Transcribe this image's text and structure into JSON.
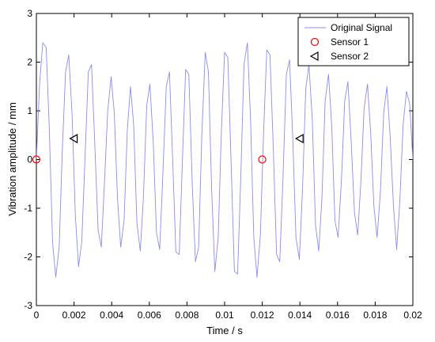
{
  "chart_data": {
    "type": "line",
    "title": "",
    "xlabel": "Time / s",
    "ylabel": "Vibration amplitude / mm",
    "xlim": [
      0,
      0.02
    ],
    "ylim": [
      -3,
      3
    ],
    "x_ticks": [
      0,
      0.002,
      0.004,
      0.006,
      0.008,
      0.01,
      0.012,
      0.014,
      0.016,
      0.018,
      0.02
    ],
    "x_tick_labels": [
      "0",
      "0.002",
      "0.004",
      "0.006",
      "0.008",
      "0.01",
      "0.012",
      "0.014",
      "0.016",
      "0.018",
      "0.02"
    ],
    "y_ticks": [
      -3,
      -2,
      -1,
      0,
      1,
      2,
      3
    ],
    "y_tick_labels": [
      "-3",
      "-2",
      "-1",
      "0",
      "1",
      "2",
      "3"
    ],
    "grid": false,
    "legend_position": "top-right",
    "series": [
      {
        "name": "Original Signal",
        "style": "line",
        "color": "#8c8cf0",
        "x": [
          0,
          0.00017,
          0.00034,
          0.00052,
          0.00069,
          0.00086,
          0.00103,
          0.00121,
          0.00138,
          0.00155,
          0.00172,
          0.0019,
          0.00207,
          0.00224,
          0.00241,
          0.00259,
          0.00276,
          0.00293,
          0.0031,
          0.00328,
          0.00345,
          0.00362,
          0.00379,
          0.00397,
          0.00414,
          0.00431,
          0.00448,
          0.00466,
          0.00483,
          0.005,
          0.00517,
          0.00534,
          0.00552,
          0.00569,
          0.00586,
          0.00603,
          0.00621,
          0.00638,
          0.00655,
          0.00672,
          0.0069,
          0.00707,
          0.00724,
          0.00741,
          0.00759,
          0.00776,
          0.00793,
          0.0081,
          0.00828,
          0.00845,
          0.00862,
          0.00879,
          0.00897,
          0.00914,
          0.00931,
          0.00948,
          0.00966,
          0.00983,
          0.01,
          0.01017,
          0.01034,
          0.01052,
          0.01069,
          0.01086,
          0.01103,
          0.01121,
          0.01138,
          0.01155,
          0.01172,
          0.0119,
          0.01207,
          0.01224,
          0.01241,
          0.01259,
          0.01276,
          0.01293,
          0.0131,
          0.01328,
          0.01345,
          0.01362,
          0.01379,
          0.01397,
          0.01414,
          0.01431,
          0.01448,
          0.01466,
          0.01483,
          0.015,
          0.01517,
          0.01534,
          0.01552,
          0.01569,
          0.01586,
          0.01603,
          0.01621,
          0.01638,
          0.01655,
          0.01672,
          0.0169,
          0.01707,
          0.01724,
          0.01741,
          0.01759,
          0.01776,
          0.01793,
          0.0181,
          0.01828,
          0.01845,
          0.01862,
          0.01879,
          0.01897,
          0.01914,
          0.01931,
          0.01948,
          0.01966,
          0.01983,
          0.02
        ],
        "y": [
          0,
          1.55,
          2.4,
          2.3,
          0.6,
          -1.7,
          -2.42,
          -1.8,
          0.2,
          1.8,
          2.15,
          0.9,
          -1.15,
          -2.2,
          -1.7,
          0.1,
          1.8,
          1.95,
          0.35,
          -1.45,
          -1.8,
          -0.45,
          1.0,
          1.7,
          0.95,
          -0.8,
          -1.8,
          -1.25,
          0.6,
          1.5,
          0.7,
          -1.3,
          -1.88,
          -0.75,
          1.1,
          1.55,
          0.35,
          -1.5,
          -1.85,
          -0.3,
          1.5,
          1.8,
          0.0,
          -1.9,
          -1.95,
          0.0,
          1.85,
          1.75,
          -0.5,
          -2.1,
          -1.8,
          0.5,
          2.2,
          1.8,
          -0.6,
          -2.3,
          -1.6,
          0.6,
          2.2,
          2.1,
          0.0,
          -2.3,
          -2.35,
          -0.35,
          1.95,
          2.4,
          0.8,
          -1.6,
          -2.42,
          -1.55,
          0.55,
          2.25,
          2.15,
          0.2,
          -1.95,
          -2.1,
          -0.4,
          1.75,
          2.05,
          0.45,
          -1.6,
          -2.05,
          -0.6,
          1.45,
          1.95,
          0.8,
          -1.35,
          -1.88,
          -0.8,
          1.2,
          1.75,
          0.7,
          -1.25,
          -1.6,
          -0.4,
          1.2,
          1.6,
          0.4,
          -1.1,
          -1.55,
          -0.45,
          1.05,
          1.55,
          0.55,
          -0.95,
          -1.6,
          -0.65,
          0.95,
          1.5,
          0.5,
          -0.95,
          -1.85,
          -0.85,
          0.7,
          1.4,
          1.15,
          0.0
        ]
      },
      {
        "name": "Sensor 1",
        "style": "marker",
        "marker": "circle",
        "color": "#ff0000",
        "x": [
          0,
          0.012
        ],
        "y": [
          0,
          0
        ]
      },
      {
        "name": "Sensor 2",
        "style": "marker",
        "marker": "triangle-left",
        "color": "#000000",
        "x": [
          0.002,
          0.014
        ],
        "y": [
          0.43,
          0.43
        ]
      }
    ]
  }
}
